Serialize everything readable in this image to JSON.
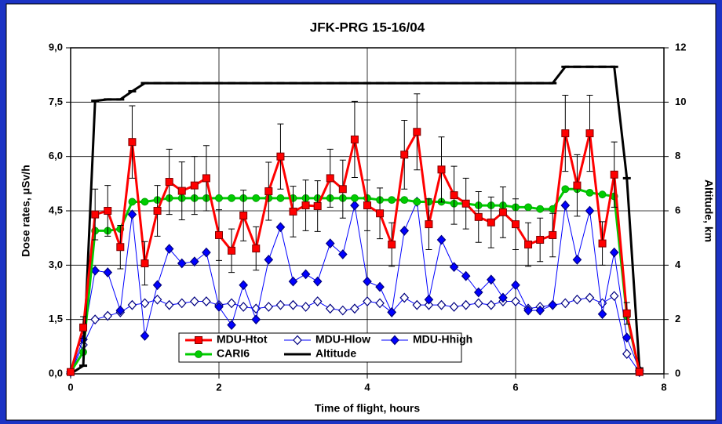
{
  "chart_data": {
    "type": "line",
    "title": "JFK-PRG 15-16/04",
    "xlabel": "Time of flight, hours",
    "ylabel": "Dose rates, μSv/h",
    "y2label": "Altitude, km",
    "x": [
      0,
      0.17,
      0.33,
      0.5,
      0.67,
      0.83,
      1,
      1.17,
      1.33,
      1.5,
      1.67,
      1.83,
      2,
      2.17,
      2.33,
      2.5,
      2.67,
      2.83,
      3,
      3.17,
      3.33,
      3.5,
      3.67,
      3.83,
      4,
      4.17,
      4.33,
      4.5,
      4.67,
      4.83,
      5,
      5.17,
      5.33,
      5.5,
      5.67,
      5.83,
      6,
      6.17,
      6.33,
      6.5,
      6.67,
      6.83,
      7,
      7.17,
      7.33,
      7.5,
      7.67
    ],
    "xlim": [
      0,
      8
    ],
    "xticks": [
      0,
      2,
      4,
      6,
      8
    ],
    "ylim": [
      0,
      9
    ],
    "yticks": [
      {
        "value": 0,
        "label": "0,0"
      },
      {
        "value": 1.5,
        "label": "1,5"
      },
      {
        "value": 3,
        "label": "3,0"
      },
      {
        "value": 4.5,
        "label": "4,5"
      },
      {
        "value": 6,
        "label": "6,0"
      },
      {
        "value": 7.5,
        "label": "7,5"
      },
      {
        "value": 9,
        "label": "9,0"
      }
    ],
    "y2lim": [
      0,
      12
    ],
    "y2ticks": [
      0,
      2,
      4,
      6,
      8,
      10,
      12
    ],
    "grid": true,
    "series": [
      {
        "name": "MDU-Htot",
        "color": "#ff0000",
        "marker": "square",
        "values": [
          0.05,
          1.28,
          4.4,
          4.5,
          3.5,
          6.4,
          3.05,
          4.5,
          5.3,
          5.05,
          5.2,
          5.4,
          3.83,
          3.4,
          4.37,
          3.46,
          5.04,
          6.0,
          4.48,
          4.65,
          4.63,
          5.4,
          5.1,
          6.47,
          4.65,
          4.43,
          3.57,
          6.05,
          6.68,
          4.13,
          5.64,
          4.93,
          4.7,
          4.33,
          4.18,
          4.46,
          4.13,
          3.57,
          3.7,
          3.83,
          6.64,
          5.2,
          6.64,
          3.6,
          5.5,
          1.67,
          0.05
        ],
        "errors": [
          0.05,
          0.3,
          0.7,
          0.7,
          0.6,
          1.0,
          0.6,
          0.7,
          0.9,
          0.8,
          0.8,
          0.9,
          0.7,
          0.6,
          0.7,
          0.6,
          0.8,
          0.9,
          0.7,
          0.7,
          0.7,
          0.8,
          0.8,
          1.05,
          0.7,
          0.7,
          0.6,
          0.95,
          1.05,
          0.7,
          0.9,
          0.8,
          0.7,
          0.7,
          0.7,
          0.7,
          0.7,
          0.6,
          0.6,
          0.6,
          1.05,
          0.85,
          1.05,
          0.6,
          0.9,
          0.3,
          0.05
        ]
      },
      {
        "name": "MDU-Hlow",
        "color": "#0000ff",
        "marker": "open-diamond",
        "values": [
          0.05,
          0.8,
          1.5,
          1.6,
          1.7,
          1.9,
          1.95,
          2.05,
          1.9,
          1.95,
          2.0,
          2.0,
          1.9,
          1.95,
          1.85,
          1.8,
          1.85,
          1.9,
          1.9,
          1.85,
          2.0,
          1.8,
          1.75,
          1.8,
          2.0,
          1.95,
          1.7,
          2.1,
          1.9,
          1.9,
          1.9,
          1.85,
          1.9,
          1.95,
          1.9,
          2.0,
          2.0,
          1.8,
          1.85,
          1.9,
          1.95,
          2.05,
          2.1,
          1.95,
          2.15,
          0.55,
          0.05
        ]
      },
      {
        "name": "MDU-Hhigh",
        "color": "#0000ff",
        "marker": "diamond",
        "values": [
          0.05,
          0.95,
          2.85,
          2.8,
          1.75,
          4.4,
          1.05,
          2.45,
          3.45,
          3.05,
          3.1,
          3.35,
          1.85,
          1.35,
          2.45,
          1.5,
          3.15,
          4.05,
          2.55,
          2.75,
          2.55,
          3.6,
          3.3,
          4.65,
          2.55,
          2.4,
          1.7,
          3.95,
          4.75,
          2.05,
          3.7,
          2.95,
          2.7,
          2.25,
          2.6,
          2.1,
          2.45,
          1.75,
          1.75,
          1.9,
          4.65,
          3.15,
          4.5,
          1.65,
          3.35,
          1.0,
          0.1
        ]
      },
      {
        "name": "CARI6",
        "color": "#00cc00",
        "marker": "circle",
        "values": [
          0.05,
          0.6,
          3.95,
          3.95,
          4.0,
          4.75,
          4.75,
          4.8,
          4.85,
          4.85,
          4.85,
          4.85,
          4.85,
          4.85,
          4.85,
          4.85,
          4.85,
          4.85,
          4.85,
          4.85,
          4.85,
          4.85,
          4.85,
          4.85,
          4.85,
          4.8,
          4.8,
          4.8,
          4.75,
          4.75,
          4.75,
          4.7,
          4.7,
          4.65,
          4.65,
          4.65,
          4.6,
          4.6,
          4.55,
          4.55,
          5.1,
          5.1,
          5.0,
          4.95,
          4.9,
          1.6,
          0.05
        ]
      },
      {
        "name": "Altitude",
        "color": "#000000",
        "marker": "dash",
        "axis": "y2",
        "values": [
          0,
          0.3,
          10.05,
          10.1,
          10.1,
          10.4,
          10.7,
          10.7,
          10.7,
          10.7,
          10.7,
          10.7,
          10.7,
          10.7,
          10.7,
          10.7,
          10.7,
          10.7,
          10.7,
          10.7,
          10.7,
          10.7,
          10.7,
          10.7,
          10.7,
          10.7,
          10.7,
          10.7,
          10.7,
          10.7,
          10.7,
          10.7,
          10.7,
          10.7,
          10.7,
          10.7,
          10.7,
          10.7,
          10.7,
          10.7,
          11.3,
          11.3,
          11.3,
          11.3,
          11.3,
          7.2,
          0.2
        ]
      }
    ]
  }
}
